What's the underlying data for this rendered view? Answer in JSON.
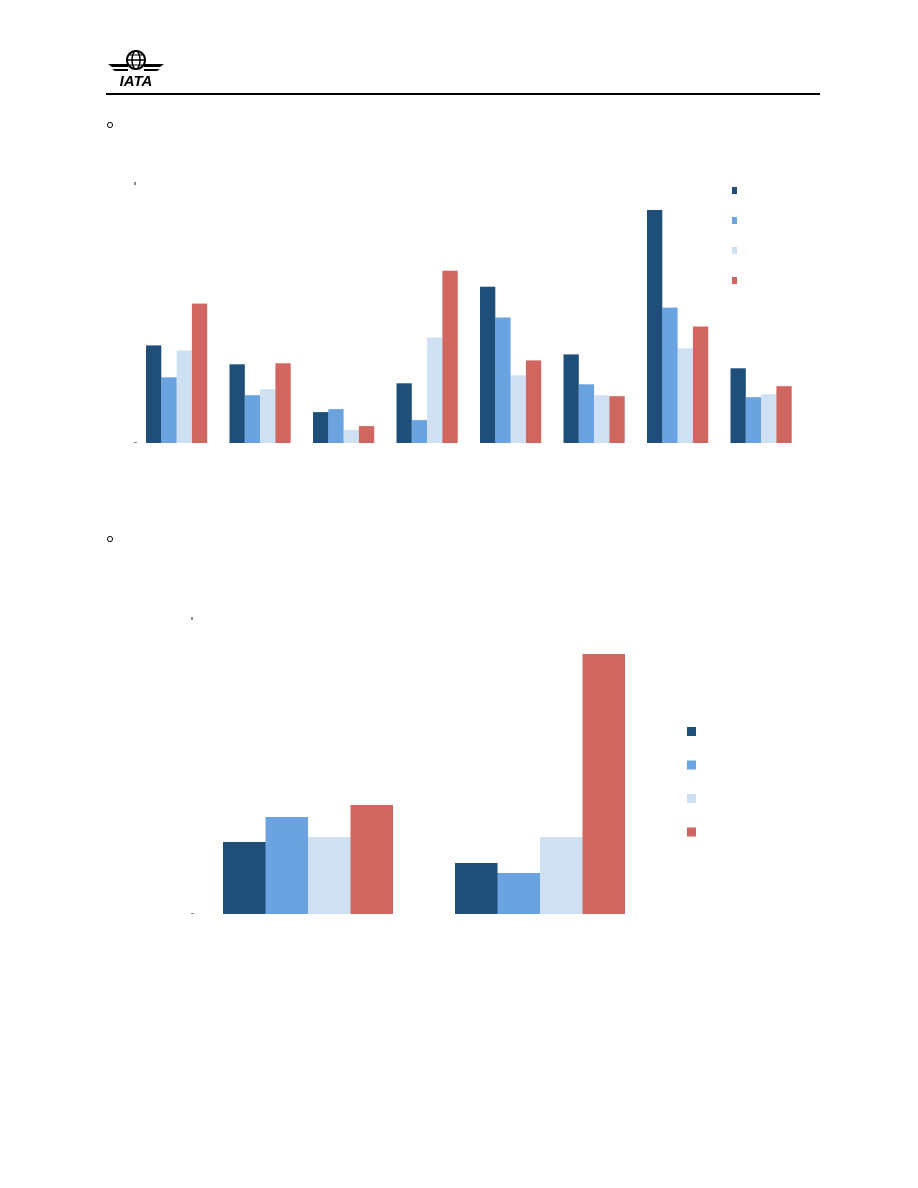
{
  "header": {
    "logo_text": "IATA"
  },
  "colors": {
    "series": [
      "#1f4e79",
      "#6aa3e0",
      "#d0e0f3",
      "#d0665f"
    ]
  },
  "chart_data": [
    {
      "type": "bar",
      "title": "",
      "xlabel": "",
      "ylabel": "",
      "ylim": [
        0,
        235
      ],
      "grid": false,
      "legend_position": "top-right",
      "categories": [
        "",
        "",
        "",
        "",
        "",
        "",
        "",
        ""
      ],
      "series": [
        {
          "values": [
            98,
            79,
            31,
            60,
            157,
            89,
            234,
            75
          ]
        },
        {
          "values": [
            66,
            48,
            34,
            23,
            126,
            59,
            136,
            46
          ]
        },
        {
          "values": [
            93,
            54,
            13,
            106,
            68,
            48,
            95,
            49
          ]
        },
        {
          "values": [
            140,
            80,
            17,
            173,
            83,
            47,
            117,
            57
          ]
        }
      ]
    },
    {
      "type": "bar",
      "title": "",
      "xlabel": "",
      "ylabel": "",
      "ylim": [
        0,
        260
      ],
      "grid": false,
      "legend_position": "right",
      "categories": [
        "",
        ""
      ],
      "series": [
        {
          "values": [
            72,
            51
          ]
        },
        {
          "values": [
            97,
            41
          ]
        },
        {
          "values": [
            77,
            77
          ]
        },
        {
          "values": [
            109,
            260
          ]
        }
      ]
    }
  ]
}
